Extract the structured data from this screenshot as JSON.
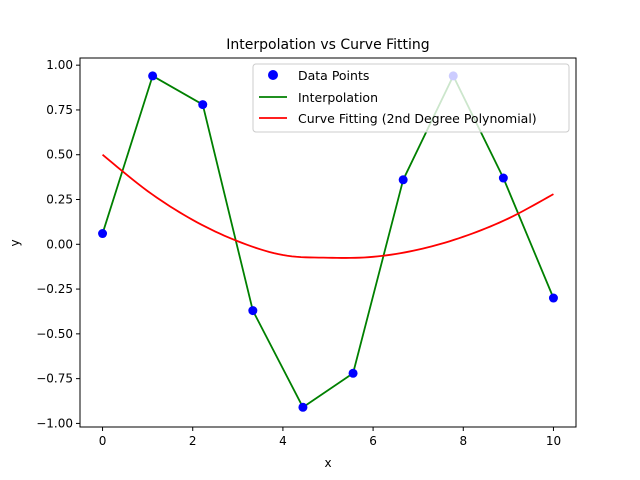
{
  "chart_data": {
    "type": "line",
    "title": "Interpolation vs Curve Fitting",
    "xlabel": "x",
    "ylabel": "y",
    "xlim": [
      -0.5,
      10.5
    ],
    "ylim": [
      -1.02,
      1.04
    ],
    "xticks": [
      0,
      2,
      4,
      6,
      8,
      10
    ],
    "xtick_labels": [
      "0",
      "2",
      "4",
      "6",
      "8",
      "10"
    ],
    "yticks": [
      -1.0,
      -0.75,
      -0.5,
      -0.25,
      0.0,
      0.25,
      0.5,
      0.75,
      1.0
    ],
    "ytick_labels": [
      "−1.00",
      "−0.75",
      "−0.50",
      "−0.25",
      "0.00",
      "0.25",
      "0.50",
      "0.75",
      "1.00"
    ],
    "grid": false,
    "legend_position": "upper right",
    "series": [
      {
        "name": "Data Points",
        "kind": "scatter",
        "color": "#0000ff",
        "x": [
          0,
          1.111,
          2.222,
          3.333,
          4.444,
          5.556,
          6.667,
          7.778,
          8.889,
          10
        ],
        "y": [
          0.06,
          0.94,
          0.78,
          -0.37,
          -0.91,
          -0.72,
          0.36,
          0.94,
          0.37,
          -0.3
        ]
      },
      {
        "name": "Interpolation",
        "kind": "line",
        "color": "#008000",
        "x": [
          0,
          1.111,
          2.222,
          3.333,
          4.444,
          5.556,
          6.667,
          7.778,
          8.889,
          10
        ],
        "y": [
          0.06,
          0.94,
          0.78,
          -0.37,
          -0.91,
          -0.72,
          0.36,
          0.94,
          0.37,
          -0.3
        ]
      },
      {
        "name": "Curve Fitting (2nd Degree Polynomial)",
        "kind": "curve",
        "color": "#ff0000",
        "x": [
          0,
          1,
          2,
          3,
          4,
          5,
          6,
          7,
          8,
          9,
          10
        ],
        "y": [
          0.5,
          0.297,
          0.136,
          0.017,
          -0.06,
          -0.075,
          -0.07,
          -0.03,
          0.042,
          0.144,
          0.28
        ]
      }
    ]
  }
}
